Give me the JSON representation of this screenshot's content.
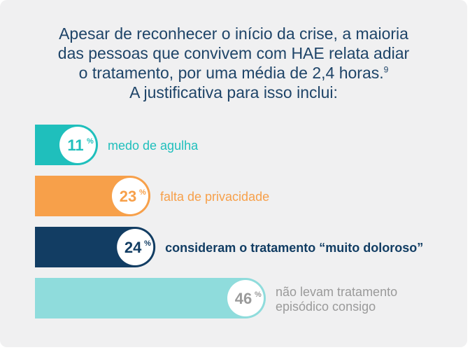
{
  "headline": {
    "line1": "Apesar de reconhecer o início da crise, a maioria",
    "line2": "das pessoas que convivem com HAE relata adiar",
    "line3": "o tratamento, por uma média de 2,4 horas.",
    "footnote": "9",
    "line4": "A justificativa para isso inclui:"
  },
  "colors": {
    "background": "#f0f0f1",
    "headline": "#1e4468",
    "circle_fill": "#ffffff"
  },
  "chart_data": {
    "type": "bar",
    "orientation": "horizontal",
    "unit": "%",
    "categories": [
      "medo de agulha",
      "falta de privacidade",
      "consideram o tratamento “muito doloroso”",
      "não levam tratamento episódico consigo"
    ],
    "values": [
      11,
      23,
      24,
      46
    ],
    "value_labels": [
      "11",
      "23",
      "24",
      "46"
    ],
    "bar_colors": [
      "#1fbfbc",
      "#f7a04a",
      "#123d63",
      "#8fdcdc"
    ],
    "label_colors": [
      "#1fbfbc",
      "#f7a04a",
      "#123d63",
      "#9a9a9a"
    ],
    "xlim": [
      0,
      46
    ]
  }
}
